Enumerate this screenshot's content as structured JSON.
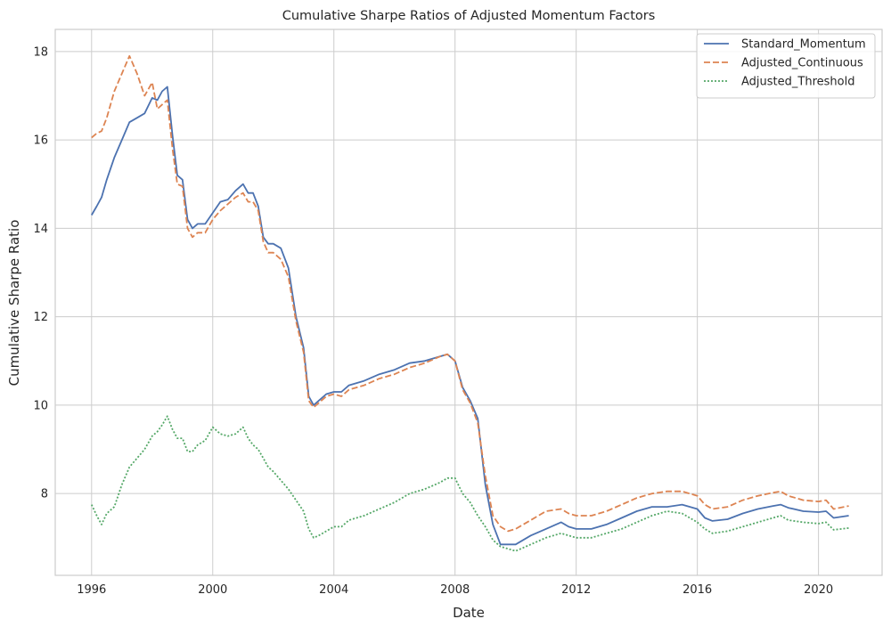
{
  "chart_data": {
    "type": "line",
    "title": "Cumulative Sharpe Ratios of Adjusted Momentum Factors",
    "xlabel": "Date",
    "ylabel": "Cumulative Sharpe Ratio",
    "xlim": [
      1994.8,
      2022.1
    ],
    "ylim": [
      6.15,
      18.5
    ],
    "xticks": [
      1996,
      2000,
      2004,
      2008,
      2012,
      2016,
      2020
    ],
    "yticks": [
      8,
      10,
      12,
      14,
      16,
      18
    ],
    "grid": true,
    "legend_position": "top-right",
    "series": [
      {
        "name": "Standard_Momentum",
        "color": "#4c72b0",
        "dash": "solid",
        "x": [
          1996.0,
          1996.17,
          1996.33,
          1996.5,
          1996.75,
          1997.0,
          1997.25,
          1997.5,
          1997.75,
          1998.0,
          1998.17,
          1998.33,
          1998.5,
          1998.67,
          1998.83,
          1999.0,
          1999.17,
          1999.33,
          1999.5,
          1999.75,
          2000.0,
          2000.25,
          2000.5,
          2000.75,
          2001.0,
          2001.17,
          2001.33,
          2001.5,
          2001.67,
          2001.83,
          2002.0,
          2002.25,
          2002.5,
          2002.75,
          2003.0,
          2003.17,
          2003.33,
          2003.5,
          2003.75,
          2004.0,
          2004.25,
          2004.5,
          2005.0,
          2005.5,
          2006.0,
          2006.5,
          2007.0,
          2007.5,
          2007.75,
          2008.0,
          2008.25,
          2008.5,
          2008.75,
          2009.0,
          2009.25,
          2009.5,
          2009.75,
          2010.0,
          2010.5,
          2011.0,
          2011.5,
          2011.75,
          2012.0,
          2012.5,
          2013.0,
          2013.5,
          2014.0,
          2014.5,
          2015.0,
          2015.5,
          2016.0,
          2016.25,
          2016.5,
          2017.0,
          2017.5,
          2018.0,
          2018.5,
          2018.75,
          2019.0,
          2019.5,
          2020.0,
          2020.25,
          2020.5,
          2021.0
        ],
        "y": [
          14.3,
          14.5,
          14.7,
          15.1,
          15.6,
          16.0,
          16.4,
          16.5,
          16.6,
          16.95,
          16.9,
          17.1,
          17.2,
          16.1,
          15.2,
          15.1,
          14.2,
          14.0,
          14.1,
          14.1,
          14.35,
          14.6,
          14.65,
          14.85,
          15.0,
          14.8,
          14.8,
          14.5,
          13.8,
          13.65,
          13.65,
          13.55,
          13.1,
          12.0,
          11.3,
          10.2,
          10.0,
          10.1,
          10.25,
          10.3,
          10.3,
          10.45,
          10.55,
          10.7,
          10.8,
          10.95,
          11.0,
          11.1,
          11.15,
          11.0,
          10.4,
          10.1,
          9.7,
          8.2,
          7.3,
          6.85,
          6.85,
          6.85,
          7.05,
          7.2,
          7.35,
          7.25,
          7.2,
          7.2,
          7.3,
          7.45,
          7.6,
          7.7,
          7.7,
          7.75,
          7.65,
          7.45,
          7.38,
          7.42,
          7.55,
          7.65,
          7.72,
          7.75,
          7.68,
          7.6,
          7.58,
          7.6,
          7.45,
          7.5
        ]
      },
      {
        "name": "Adjusted_Continuous",
        "color": "#dd8452",
        "dash": "dashed",
        "x": [
          1996.0,
          1996.17,
          1996.33,
          1996.5,
          1996.75,
          1997.0,
          1997.25,
          1997.5,
          1997.75,
          1998.0,
          1998.17,
          1998.33,
          1998.5,
          1998.67,
          1998.83,
          1999.0,
          1999.17,
          1999.33,
          1999.5,
          1999.75,
          2000.0,
          2000.25,
          2000.5,
          2000.75,
          2001.0,
          2001.17,
          2001.33,
          2001.5,
          2001.67,
          2001.83,
          2002.0,
          2002.25,
          2002.5,
          2002.75,
          2003.0,
          2003.17,
          2003.33,
          2003.5,
          2003.75,
          2004.0,
          2004.25,
          2004.5,
          2005.0,
          2005.5,
          2006.0,
          2006.5,
          2007.0,
          2007.5,
          2007.75,
          2008.0,
          2008.25,
          2008.5,
          2008.75,
          2009.0,
          2009.25,
          2009.5,
          2009.75,
          2010.0,
          2010.5,
          2011.0,
          2011.5,
          2011.75,
          2012.0,
          2012.5,
          2013.0,
          2013.5,
          2014.0,
          2014.5,
          2015.0,
          2015.5,
          2016.0,
          2016.25,
          2016.5,
          2017.0,
          2017.5,
          2018.0,
          2018.5,
          2018.75,
          2019.0,
          2019.5,
          2020.0,
          2020.25,
          2020.5,
          2021.0
        ],
        "y": [
          16.05,
          16.15,
          16.2,
          16.5,
          17.1,
          17.5,
          17.9,
          17.5,
          17.0,
          17.3,
          16.7,
          16.8,
          16.9,
          15.8,
          15.0,
          14.95,
          14.0,
          13.8,
          13.9,
          13.9,
          14.2,
          14.4,
          14.55,
          14.7,
          14.8,
          14.6,
          14.6,
          14.4,
          13.7,
          13.45,
          13.45,
          13.3,
          12.9,
          11.9,
          11.2,
          10.1,
          9.95,
          10.05,
          10.2,
          10.25,
          10.2,
          10.35,
          10.45,
          10.6,
          10.7,
          10.85,
          10.95,
          11.1,
          11.15,
          11.0,
          10.35,
          10.05,
          9.6,
          8.4,
          7.5,
          7.25,
          7.15,
          7.2,
          7.4,
          7.6,
          7.65,
          7.55,
          7.5,
          7.5,
          7.6,
          7.75,
          7.9,
          8.0,
          8.05,
          8.05,
          7.95,
          7.75,
          7.65,
          7.7,
          7.85,
          7.95,
          8.02,
          8.05,
          7.95,
          7.85,
          7.82,
          7.85,
          7.65,
          7.72
        ]
      },
      {
        "name": "Adjusted_Threshold",
        "color": "#55a868",
        "dash": "dotted",
        "x": [
          1996.0,
          1996.17,
          1996.33,
          1996.5,
          1996.75,
          1997.0,
          1997.25,
          1997.5,
          1997.75,
          1998.0,
          1998.17,
          1998.33,
          1998.5,
          1998.67,
          1998.83,
          1999.0,
          1999.17,
          1999.33,
          1999.5,
          1999.75,
          2000.0,
          2000.25,
          2000.5,
          2000.75,
          2001.0,
          2001.17,
          2001.33,
          2001.5,
          2001.67,
          2001.83,
          2002.0,
          2002.25,
          2002.5,
          2002.75,
          2003.0,
          2003.17,
          2003.33,
          2003.5,
          2003.75,
          2004.0,
          2004.25,
          2004.5,
          2005.0,
          2005.5,
          2006.0,
          2006.5,
          2007.0,
          2007.5,
          2007.75,
          2008.0,
          2008.25,
          2008.5,
          2008.75,
          2009.0,
          2009.25,
          2009.5,
          2009.75,
          2010.0,
          2010.5,
          2011.0,
          2011.5,
          2011.75,
          2012.0,
          2012.5,
          2013.0,
          2013.5,
          2014.0,
          2014.5,
          2015.0,
          2015.5,
          2016.0,
          2016.25,
          2016.5,
          2017.0,
          2017.5,
          2018.0,
          2018.5,
          2018.75,
          2019.0,
          2019.5,
          2020.0,
          2020.25,
          2020.5,
          2021.0
        ],
        "y": [
          7.75,
          7.5,
          7.3,
          7.55,
          7.7,
          8.2,
          8.6,
          8.8,
          9.0,
          9.3,
          9.4,
          9.55,
          9.75,
          9.45,
          9.25,
          9.25,
          8.95,
          8.95,
          9.1,
          9.2,
          9.5,
          9.35,
          9.3,
          9.35,
          9.5,
          9.25,
          9.1,
          9.0,
          8.8,
          8.6,
          8.5,
          8.3,
          8.1,
          7.85,
          7.6,
          7.2,
          7.0,
          7.05,
          7.15,
          7.25,
          7.25,
          7.4,
          7.5,
          7.65,
          7.8,
          8.0,
          8.1,
          8.25,
          8.35,
          8.35,
          8.0,
          7.8,
          7.5,
          7.25,
          6.95,
          6.8,
          6.75,
          6.7,
          6.85,
          7.0,
          7.1,
          7.05,
          7.0,
          7.0,
          7.1,
          7.2,
          7.35,
          7.5,
          7.6,
          7.55,
          7.35,
          7.2,
          7.1,
          7.15,
          7.25,
          7.35,
          7.45,
          7.5,
          7.4,
          7.35,
          7.32,
          7.35,
          7.18,
          7.22
        ]
      }
    ]
  }
}
